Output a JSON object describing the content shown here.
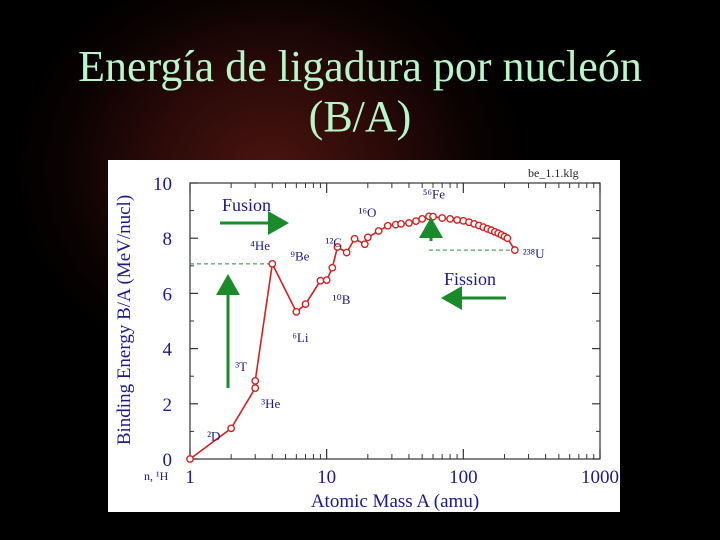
{
  "slide": {
    "title_line1": "Energía de ligadura por nucleón",
    "title_line2": "(B/A)"
  },
  "colors": {
    "title": "#b9f5c8",
    "curve": "#d42020",
    "arrow": "#1a8a2a",
    "text": "#1a1a8a",
    "reference_line": "#2a8a3a"
  },
  "chart_data": {
    "type": "line",
    "file_label": "be_1.1.klg",
    "xlabel": "Atomic Mass A (amu)",
    "ylabel": "Binding Energy B/A (MeV/nucl)",
    "xscale": "log",
    "xlim": [
      1,
      1000
    ],
    "ylim": [
      0,
      10
    ],
    "x_ticks": [
      "1",
      "10",
      "100",
      "1000"
    ],
    "y_ticks": [
      "0",
      "2",
      "4",
      "6",
      "8",
      "10"
    ],
    "origin_label": "n, ¹H",
    "series": [
      {
        "x": [
          1,
          2,
          3,
          3,
          4,
          6,
          7,
          9,
          10,
          11,
          12,
          14,
          16,
          19,
          20,
          24,
          28,
          32,
          35,
          40,
          45,
          50,
          56,
          60,
          70,
          80,
          90,
          100,
          110,
          120,
          130,
          140,
          150,
          160,
          170,
          180,
          190,
          200,
          210,
          238
        ],
        "y": [
          0,
          1.11,
          2.57,
          2.83,
          7.07,
          5.33,
          5.61,
          6.46,
          6.48,
          6.93,
          7.68,
          7.48,
          7.98,
          7.78,
          8.03,
          8.26,
          8.45,
          8.49,
          8.52,
          8.55,
          8.62,
          8.7,
          8.79,
          8.78,
          8.73,
          8.7,
          8.66,
          8.63,
          8.58,
          8.52,
          8.46,
          8.4,
          8.34,
          8.29,
          8.23,
          8.18,
          8.12,
          8.06,
          8.0,
          7.57
        ]
      }
    ],
    "annotations": [
      {
        "text": "²D",
        "x": 2,
        "y": 1.11
      },
      {
        "text": "³T",
        "x": 3,
        "y": 2.83
      },
      {
        "text": "³He",
        "x": 3,
        "y": 2.57
      },
      {
        "text": "⁴He",
        "x": 4,
        "y": 7.07
      },
      {
        "text": "⁶Li",
        "x": 6,
        "y": 5.33
      },
      {
        "text": "⁹Be",
        "x": 9,
        "y": 6.46
      },
      {
        "text": "¹⁰B",
        "x": 10,
        "y": 6.48
      },
      {
        "text": "¹²C",
        "x": 12,
        "y": 7.68
      },
      {
        "text": "¹⁶O",
        "x": 16,
        "y": 7.98
      },
      {
        "text": "⁵⁶Fe",
        "x": 56,
        "y": 8.79
      },
      {
        "text": "²³⁸U",
        "x": 238,
        "y": 7.57
      }
    ],
    "regions": {
      "fusion": "Fusion",
      "fission": "Fission"
    }
  }
}
